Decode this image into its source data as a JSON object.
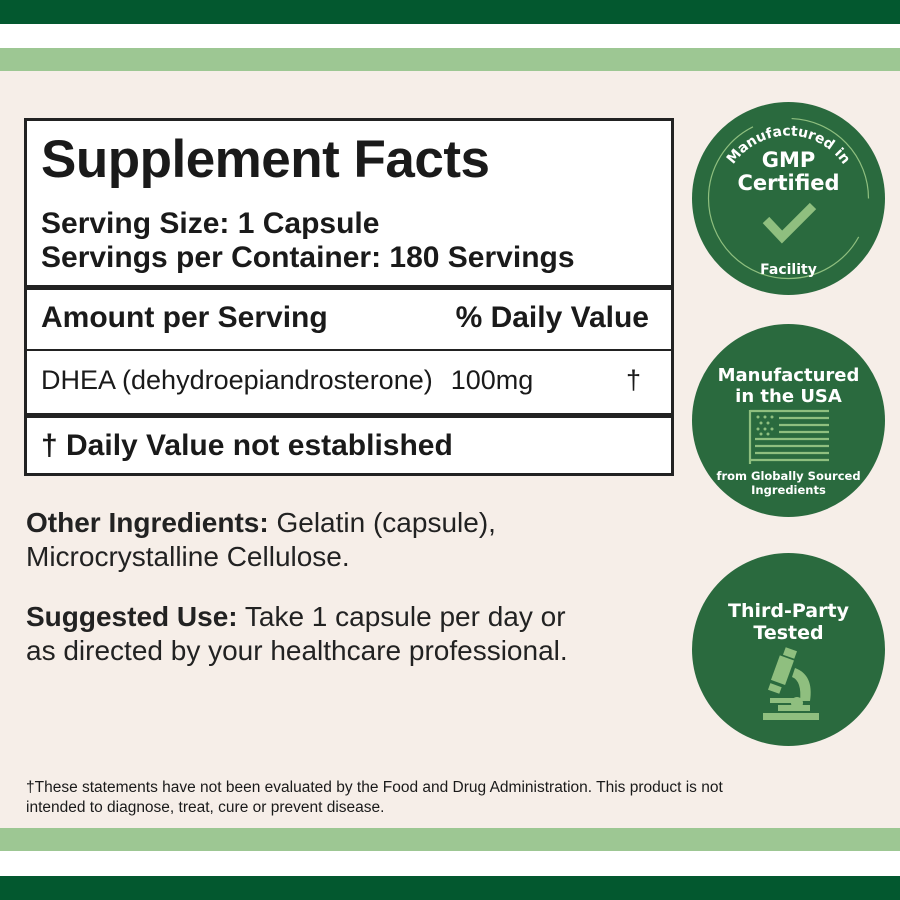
{
  "colors": {
    "dark_green": "#03582f",
    "light_green": "#9dc793",
    "cream": "#f6eee8",
    "badge_green": "#2a6a3e",
    "icon_green": "#8fbf7f"
  },
  "facts": {
    "title": "Supplement Facts",
    "serving_size": "Serving Size: 1 Capsule",
    "servings_per_container": "Servings per Container: 180 Servings",
    "amount_header": "Amount per Serving",
    "dv_header": "% Daily Value",
    "ingredient": {
      "name": "DHEA (dehydroepiandrosterone)",
      "amount": "100mg",
      "dv": "†"
    },
    "dv_note": "† Daily Value not established"
  },
  "other_ingredients": {
    "label": "Other Ingredients:",
    "text": " Gelatin (capsule),",
    "text2": "Microcrystalline Cellulose."
  },
  "suggested_use": {
    "label": "Suggested Use:",
    "text": " Take 1 capsule per day or",
    "text2": "as directed by your healthcare professional."
  },
  "disclaimer": {
    "line1": "†These statements have not been evaluated by the Food and Drug Administration. This product is not",
    "line2": "intended to diagnose, treat, cure or prevent disease."
  },
  "badges": [
    {
      "top": "Manufactured in",
      "line1": "GMP",
      "line2": "Certified",
      "bottom": "Facility",
      "icon": "checkmark-icon"
    },
    {
      "line1": "Manufactured",
      "line2": "in the USA",
      "sub1": "from Globally Sourced",
      "sub2": "Ingredients",
      "icon": "us-flag-icon"
    },
    {
      "line1": "Third-Party",
      "line2": "Tested",
      "icon": "microscope-icon"
    }
  ]
}
